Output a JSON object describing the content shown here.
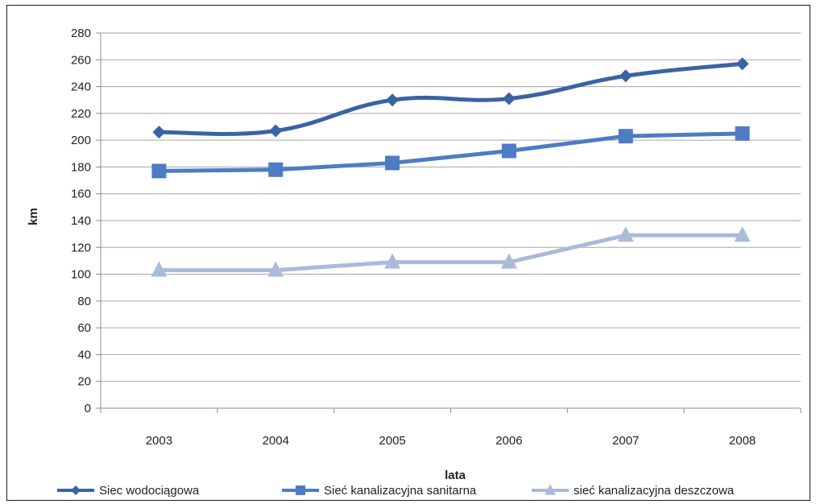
{
  "chart_data": {
    "type": "line",
    "categories": [
      "2003",
      "2004",
      "2005",
      "2006",
      "2007",
      "2008"
    ],
    "series": [
      {
        "name": "Siec wodociągowa",
        "values": [
          206,
          207,
          230,
          231,
          248,
          257
        ],
        "color": "#3a63a3",
        "marker": "diamond",
        "smooth": true
      },
      {
        "name": "Sieć kanalizacyjna sanitarna",
        "values": [
          177,
          178,
          183,
          192,
          203,
          205
        ],
        "color": "#4d7cc4",
        "marker": "square",
        "smooth": false
      },
      {
        "name": "sieć kanalizacyjna deszczowa",
        "values": [
          103,
          103,
          109,
          109,
          129,
          129
        ],
        "color": "#a9bbd9",
        "marker": "triangle",
        "smooth": false
      }
    ],
    "xlabel": "lata",
    "ylabel": "km",
    "ylim": [
      0,
      280
    ],
    "yticks": [
      "0",
      "20",
      "40",
      "60",
      "80",
      "100",
      "120",
      "140",
      "160",
      "180",
      "200",
      "220",
      "240",
      "260",
      "280"
    ],
    "grid": true,
    "legend_position": "bottom"
  }
}
